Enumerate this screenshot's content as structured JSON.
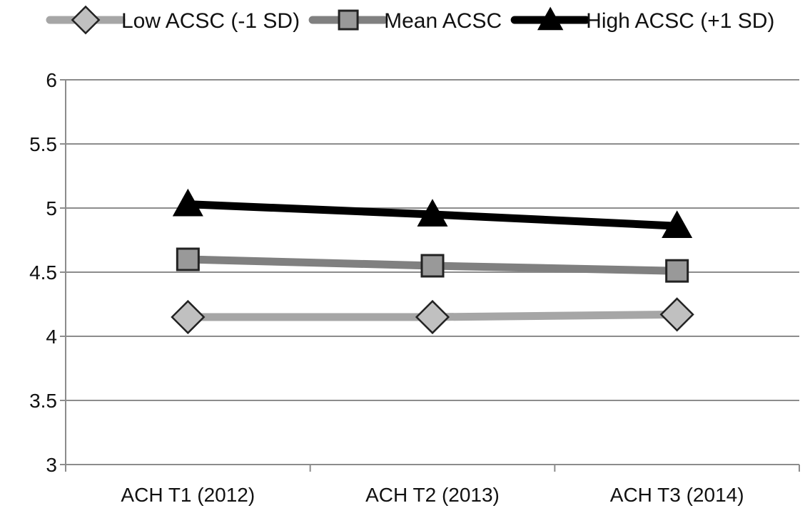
{
  "chart_data": {
    "type": "line",
    "title": "",
    "xlabel": "",
    "ylabel": "",
    "categories": [
      "ACH T1 (2012)",
      "ACH T2 (2013)",
      "ACH T3 (2014)"
    ],
    "ylim": [
      3,
      6
    ],
    "yticks": [
      3,
      3.5,
      4,
      4.5,
      5,
      5.5,
      6
    ],
    "grid": "horizontal",
    "legend_position": "top",
    "series": [
      {
        "name": "Low ACSC (-1 SD)",
        "values": [
          4.15,
          4.15,
          4.17
        ],
        "color": "#a6a6a6",
        "marker": "diamond",
        "marker_fill": "#c0c0c0"
      },
      {
        "name": "Mean ACSC",
        "values": [
          4.6,
          4.55,
          4.51
        ],
        "color": "#808080",
        "marker": "square",
        "marker_fill": "#999999"
      },
      {
        "name": "High ACSC (+1 SD)",
        "values": [
          5.03,
          4.95,
          4.86
        ],
        "color": "#000000",
        "marker": "triangle",
        "marker_fill": "#000000"
      }
    ]
  }
}
